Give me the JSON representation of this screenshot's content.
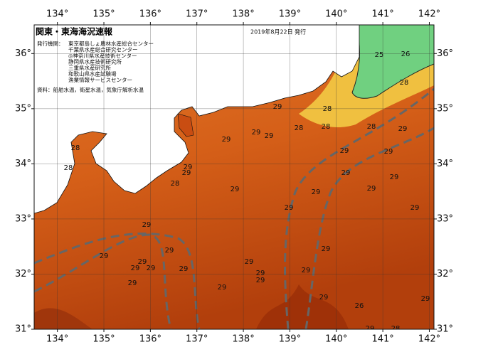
{
  "map": {
    "title": "関東・東海海況速報",
    "date": "2019年8月22日 発行",
    "agencies_label": "発行機関：",
    "agencies": [
      "東京都島しょ農林水産総合センター",
      "千葉県水産総合研究センター",
      "◎神奈川県水産技術センター",
      "静岡県水産技術研究所",
      "三重県水産研究所",
      "和歌山県水産試験場",
      "漁業情報サービスセンター"
    ],
    "source": "資料：船舶水温，衛星水温，気象庁解析水温",
    "xlim": [
      133.5,
      142.1
    ],
    "ylim": [
      31,
      36.52
    ],
    "xticks": [
      {
        "value": 134,
        "label": "134°"
      },
      {
        "value": 135,
        "label": "135°"
      },
      {
        "value": 136,
        "label": "136°"
      },
      {
        "value": 137,
        "label": "137°"
      },
      {
        "value": 138,
        "label": "138°"
      },
      {
        "value": 139,
        "label": "139°"
      },
      {
        "value": 140,
        "label": "140°"
      },
      {
        "value": 141,
        "label": "141°"
      },
      {
        "value": 142,
        "label": "142°"
      }
    ],
    "yticks": [
      {
        "value": 31,
        "label": "31°"
      },
      {
        "value": 32,
        "label": "32°"
      },
      {
        "value": 33,
        "label": "33°"
      },
      {
        "value": 34,
        "label": "34°"
      },
      {
        "value": 35,
        "label": "35°"
      },
      {
        "value": 36,
        "label": "36°"
      }
    ],
    "grid": true,
    "contour_labels": [
      25,
      26,
      28,
      28,
      28,
      29,
      29,
      28,
      28,
      28,
      29,
      29,
      29,
      29,
      29,
      28,
      28,
      29,
      29,
      29,
      29,
      29,
      29,
      29,
      29,
      29,
      29,
      29,
      29,
      29,
      29,
      29,
      29,
      29,
      29,
      29,
      29,
      29,
      29,
      29,
      26,
      29,
      28,
      29,
      29
    ]
  }
}
